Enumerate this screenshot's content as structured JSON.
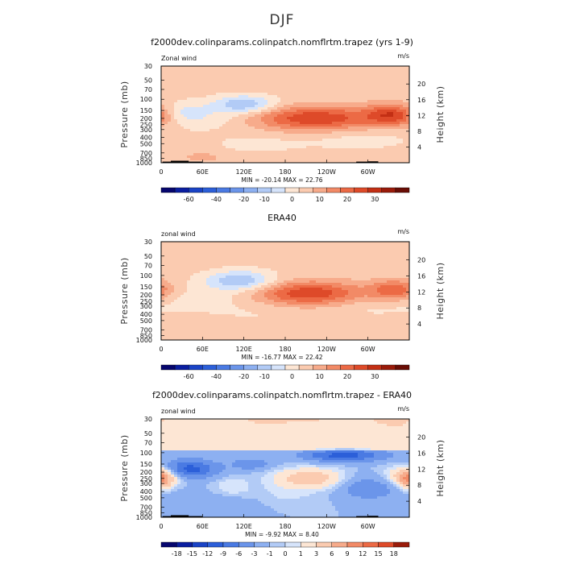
{
  "figure": {
    "title": "DJF",
    "bg": "#ffffff"
  },
  "axes": {
    "ylabel_left": "Pressure (mb)",
    "ylabel_right": "Height (km)",
    "pressure_ticks": [
      "30",
      "50",
      "70",
      "100",
      "150",
      "200",
      "250",
      "300",
      "400",
      "500",
      "700",
      "850",
      "1000"
    ],
    "pressure_values": [
      30,
      50,
      70,
      100,
      150,
      200,
      250,
      300,
      400,
      500,
      700,
      850,
      1000
    ],
    "height_ticks": [
      "20",
      "16",
      "12",
      "8",
      "4"
    ],
    "height_values": [
      20,
      16,
      12,
      8,
      4
    ],
    "lon_ticks": [
      "0",
      "60E",
      "120E",
      "180",
      "120W",
      "60W"
    ],
    "lon_values": [
      0,
      60,
      120,
      180,
      240,
      300
    ]
  },
  "chart_data": [
    {
      "type": "heatmap",
      "title": "f2000dev.colinparams.colinpatch.nomflrtm.trapez (yrs 1-9)",
      "field_label": "Zonal wind",
      "units": "m/s",
      "xlim": [
        0,
        360
      ],
      "ylim": [
        1000,
        30
      ],
      "stats": "MIN = -20.14   MAX =  22.76",
      "min": -20.14,
      "max": 22.76,
      "levels": [
        -70,
        -60,
        -50,
        -40,
        -30,
        -20,
        -15,
        -10,
        -5,
        0,
        5,
        10,
        15,
        20,
        25,
        30,
        40
      ],
      "colorbar_labels": [
        "-60",
        "-40",
        "-20",
        "-10",
        "0",
        "10",
        "20",
        "30"
      ],
      "colorbar_colors": [
        "#06066e",
        "#0a1ea0",
        "#1a43c6",
        "#2c5fd9",
        "#4a7ae3",
        "#6b95ea",
        "#8db0f1",
        "#b2cbf6",
        "#d6e4fb",
        "#fde6d4",
        "#fbcbb0",
        "#f7ab8b",
        "#f28a66",
        "#ec6a45",
        "#de4a29",
        "#c32f14",
        "#9a1b0a",
        "#6a0d05"
      ],
      "blobs": [
        {
          "lon": 225,
          "p": 200,
          "dlon": 62,
          "dlp": 0.62,
          "value": 22.7
        },
        {
          "lon": 338,
          "p": 175,
          "dlon": 28,
          "dlp": 0.55,
          "value": 21
        },
        {
          "lon": 120,
          "p": 120,
          "dlon": 32,
          "dlp": 0.45,
          "value": -17
        },
        {
          "lon": 27,
          "p": 160,
          "dlon": 26,
          "dlp": 0.55,
          "value": -9
        },
        {
          "lon": 72,
          "p": 200,
          "dlon": 40,
          "dlp": 0.6,
          "value": -5
        },
        {
          "lon": 290,
          "p": 420,
          "dlon": 55,
          "dlp": 0.6,
          "value": -4
        },
        {
          "lon": 140,
          "p": 500,
          "dlon": 55,
          "dlp": 0.6,
          "value": -3
        },
        {
          "lon": 60,
          "p": 820,
          "dlon": 20,
          "dlp": 0.25,
          "value": 6
        }
      ],
      "background": 2,
      "terrain": [
        {
          "lon0": 2,
          "lon1": 14,
          "p": 960
        },
        {
          "lon0": 14,
          "lon1": 40,
          "p": 930
        },
        {
          "lon0": 40,
          "lon1": 60,
          "p": 960
        },
        {
          "lon0": 283,
          "lon1": 300,
          "p": 960
        },
        {
          "lon0": 300,
          "lon1": 315,
          "p": 950
        }
      ]
    },
    {
      "type": "heatmap",
      "title": "ERA40",
      "field_label": "zonal wind",
      "units": "m/s",
      "xlim": [
        0,
        360
      ],
      "ylim": [
        1000,
        30
      ],
      "stats": "MIN = -16.77   MAX =  22.42",
      "min": -16.77,
      "max": 22.42,
      "levels": [
        -70,
        -60,
        -50,
        -40,
        -30,
        -20,
        -15,
        -10,
        -5,
        0,
        5,
        10,
        15,
        20,
        25,
        30,
        40
      ],
      "colorbar_labels": [
        "-60",
        "-40",
        "-20",
        "-10",
        "0",
        "10",
        "20",
        "30"
      ],
      "colorbar_colors": [
        "#06066e",
        "#0a1ea0",
        "#1a43c6",
        "#2c5fd9",
        "#4a7ae3",
        "#6b95ea",
        "#8db0f1",
        "#b2cbf6",
        "#d6e4fb",
        "#fde6d4",
        "#fbcbb0",
        "#f7ab8b",
        "#f28a66",
        "#ec6a45",
        "#de4a29",
        "#c32f14",
        "#9a1b0a",
        "#6a0d05"
      ],
      "blobs": [
        {
          "lon": 215,
          "p": 190,
          "dlon": 55,
          "dlp": 0.6,
          "value": 22.4
        },
        {
          "lon": 340,
          "p": 170,
          "dlon": 25,
          "dlp": 0.5,
          "value": 18
        },
        {
          "lon": 115,
          "p": 120,
          "dlon": 35,
          "dlp": 0.5,
          "value": -16.7
        },
        {
          "lon": 60,
          "p": 220,
          "dlon": 60,
          "dlp": 0.7,
          "value": -4
        },
        {
          "lon": 300,
          "p": 300,
          "dlon": 50,
          "dlp": 0.6,
          "value": -3
        },
        {
          "lon": 150,
          "p": 400,
          "dlon": 60,
          "dlp": 0.7,
          "value": -2
        }
      ],
      "background": 2,
      "terrain": []
    },
    {
      "type": "heatmap",
      "title": "f2000dev.colinparams.colinpatch.nomflrtm.trapez - ERA40",
      "field_label": "zonal wind",
      "units": "m/s",
      "xlim": [
        0,
        360
      ],
      "ylim": [
        1000,
        30
      ],
      "stats": "MIN =  -9.92   MAX =   8.40",
      "min": -9.92,
      "max": 8.4,
      "levels": [
        -18,
        -15,
        -12,
        -9,
        -6,
        -3,
        -1,
        0,
        1,
        3,
        6,
        9,
        12,
        15,
        18
      ],
      "colorbar_labels": [
        "-18",
        "-15",
        "-12",
        "-9",
        "-6",
        "-3",
        "-1",
        "0",
        "1",
        "3",
        "6",
        "9",
        "12",
        "15",
        "18"
      ],
      "colorbar_colors": [
        "#06066e",
        "#0a1ea0",
        "#1a43c6",
        "#2c5fd9",
        "#4a7ae3",
        "#6b95ea",
        "#8db0f1",
        "#b2cbf6",
        "#d6e4fb",
        "#fde6d4",
        "#fbcbb0",
        "#f7ab8b",
        "#f28a66",
        "#ec6a45",
        "#de4a29",
        "#9a1b0a"
      ],
      "blobs": [
        {
          "lon": 40,
          "p": 180,
          "dlon": 28,
          "dlp": 0.45,
          "value": -9.9
        },
        {
          "lon": 265,
          "p": 110,
          "dlon": 40,
          "dlp": 0.3,
          "value": -9.5
        },
        {
          "lon": 130,
          "p": 150,
          "dlon": 20,
          "dlp": 0.3,
          "value": -4
        },
        {
          "lon": 215,
          "p": 250,
          "dlon": 35,
          "dlp": 0.5,
          "value": 6
        },
        {
          "lon": 360,
          "p": 220,
          "dlon": 25,
          "dlp": 0.5,
          "value": 5
        },
        {
          "lon": 0,
          "p": 250,
          "dlon": 12,
          "dlp": 0.5,
          "value": 8.4
        },
        {
          "lon": 100,
          "p": 350,
          "dlon": 20,
          "dlp": 0.6,
          "value": 2
        },
        {
          "lon": 300,
          "p": 350,
          "dlon": 30,
          "dlp": 0.6,
          "value": -4
        },
        {
          "lon": 170,
          "p": 500,
          "dlon": 40,
          "dlp": 0.6,
          "value": 1.5
        },
        {
          "lon": 80,
          "p": 600,
          "dlon": 60,
          "dlp": 0.6,
          "value": -2
        }
      ],
      "upper_bias": 3,
      "background": -1,
      "terrain": [
        {
          "lon0": 2,
          "lon1": 14,
          "p": 960
        },
        {
          "lon0": 14,
          "lon1": 40,
          "p": 930
        },
        {
          "lon0": 40,
          "lon1": 60,
          "p": 960
        },
        {
          "lon0": 283,
          "lon1": 300,
          "p": 960
        },
        {
          "lon0": 300,
          "lon1": 315,
          "p": 950
        }
      ]
    }
  ]
}
